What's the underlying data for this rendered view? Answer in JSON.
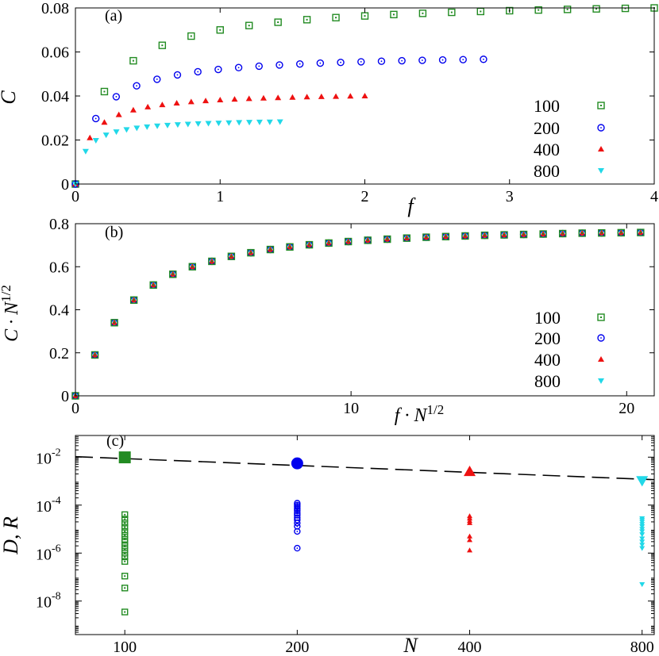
{
  "chart_data": [
    {
      "panel_label": "(a)",
      "type": "scatter",
      "xlabel": "f",
      "ylabel": "C",
      "xlim": [
        0,
        4
      ],
      "ylim": [
        0,
        0.08
      ],
      "x_ticks": [
        "0",
        "1",
        "2",
        "3",
        "4"
      ],
      "y_ticks": [
        "0",
        "0.02",
        "0.04",
        "0.06",
        "0.08"
      ],
      "legend_position": "right",
      "series": [
        {
          "name": "100",
          "marker": "open-square",
          "color": "#228b22",
          "x_max": 4.0,
          "c_inf": 0.084,
          "k": 0.2
        },
        {
          "name": "200",
          "marker": "open-circle",
          "color": "#0000ee",
          "x_max": 2.83,
          "c_inf": 0.0595,
          "k": 0.141
        },
        {
          "name": "400",
          "marker": "filled-triangle-up",
          "color": "#ee1111",
          "x_max": 2.0,
          "c_inf": 0.042,
          "k": 0.1
        },
        {
          "name": "800",
          "marker": "filled-triangle-down",
          "color": "#22d8e8",
          "x_max": 1.41,
          "c_inf": 0.0297,
          "k": 0.0707
        }
      ]
    },
    {
      "panel_label": "(b)",
      "type": "scatter",
      "xlabel": "f · N^1/2",
      "ylabel": "C · N^1/2",
      "xlim": [
        0,
        21
      ],
      "ylim": [
        0,
        0.8
      ],
      "x_ticks": [
        "0",
        "10",
        "20"
      ],
      "y_ticks": [
        "0",
        "0.2",
        "0.4",
        "0.6",
        "0.8"
      ],
      "legend_position": "right",
      "x": [
        0,
        0.707,
        1.414,
        2.121,
        2.828,
        3.536,
        4.243,
        4.95,
        5.657,
        6.364,
        7.071,
        7.778,
        8.485,
        9.192,
        9.9,
        10.607,
        11.314,
        12.021,
        12.728,
        13.435,
        14.142,
        14.849,
        15.556,
        16.263,
        16.971,
        17.678,
        18.385,
        19.092,
        19.799,
        20.506
      ],
      "y": [
        0,
        0.19,
        0.34,
        0.445,
        0.515,
        0.565,
        0.6,
        0.625,
        0.648,
        0.665,
        0.68,
        0.692,
        0.702,
        0.71,
        0.717,
        0.723,
        0.728,
        0.733,
        0.737,
        0.74,
        0.743,
        0.746,
        0.748,
        0.75,
        0.752,
        0.754,
        0.756,
        0.757,
        0.758,
        0.759
      ],
      "series": [
        {
          "name": "100",
          "marker": "open-square",
          "color": "#228b22"
        },
        {
          "name": "200",
          "marker": "open-circle",
          "color": "#0000ee"
        },
        {
          "name": "400",
          "marker": "filled-triangle-up",
          "color": "#ee1111"
        },
        {
          "name": "800",
          "marker": "filled-triangle-down",
          "color": "#22d8e8"
        }
      ]
    },
    {
      "panel_label": "(c)",
      "type": "scatter",
      "xlabel": "N",
      "ylabel": "D, R",
      "x_scale": "log",
      "y_scale": "log",
      "xlim": [
        82,
        840
      ],
      "ylim": [
        4e-10,
        0.08
      ],
      "x_ticks": [
        "100",
        "200",
        "400",
        "800"
      ],
      "y_ticks": [
        "10",
        "10",
        "10",
        "10"
      ],
      "y_tick_exponents": [
        "-2",
        "-4",
        "-6",
        "-8"
      ],
      "fit_line": {
        "style": "dashed",
        "y_at_82": 0.0105,
        "y_at_840": 0.00115
      },
      "series": [
        {
          "N": 100,
          "color": "#228b22",
          "marker": "square",
          "D": 0.0098,
          "R": [
            4e-05,
            2.6e-05,
            1.8e-05,
            1.2e-05,
            8e-06,
            5.5e-06,
            3.8e-06,
            2.8e-06,
            2e-06,
            1.4e-06,
            1e-06,
            7e-07,
            4.5e-07,
            1.1e-07,
            3.5e-08,
            3.5e-09
          ]
        },
        {
          "N": 200,
          "color": "#0000ee",
          "marker": "circle",
          "D": 0.0055,
          "R": [
            0.00012,
            0.0001,
            8.5e-05,
            7e-05,
            5.8e-05,
            4.6e-05,
            3.8e-05,
            3e-05,
            2.4e-05,
            1.8e-05,
            1.3e-05,
            8e-06,
            1.6e-06
          ]
        },
        {
          "N": 400,
          "color": "#ee1111",
          "marker": "triangle-up",
          "D": 0.0025,
          "R": [
            3.5e-05,
            2.8e-05,
            2.2e-05,
            1.8e-05,
            5e-06,
            3.5e-06,
            1.3e-06
          ]
        },
        {
          "N": 800,
          "color": "#22d8e8",
          "marker": "triangle-down",
          "D": 0.00105,
          "R": [
            2.8e-05,
            2.4e-05,
            2e-05,
            1.6e-05,
            1.3e-05,
            1e-05,
            8e-06,
            6e-06,
            4e-06,
            3e-06,
            2.2e-06,
            1.6e-06,
            5e-08
          ]
        }
      ]
    }
  ]
}
